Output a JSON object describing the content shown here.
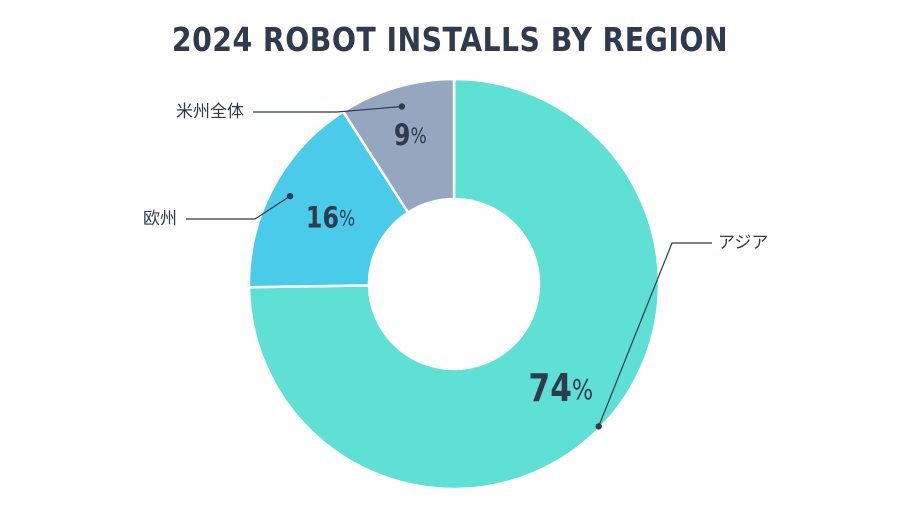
{
  "chart_data": {
    "type": "pie",
    "title": "2024 ROBOT INSTALLS BY REGION",
    "style": "donut",
    "start": "12 o'clock, clockwise",
    "slices": [
      {
        "label": "アジア",
        "value": 74,
        "display": "74",
        "color": "#5ee0d4"
      },
      {
        "label": "欧州",
        "value": 16,
        "display": "16",
        "color": "#4acbea"
      },
      {
        "label": "米州全体",
        "value": 9,
        "display": "9",
        "color": "#96a6be"
      }
    ],
    "percent_symbol": "%",
    "legend": "callout labels",
    "grid": false
  }
}
